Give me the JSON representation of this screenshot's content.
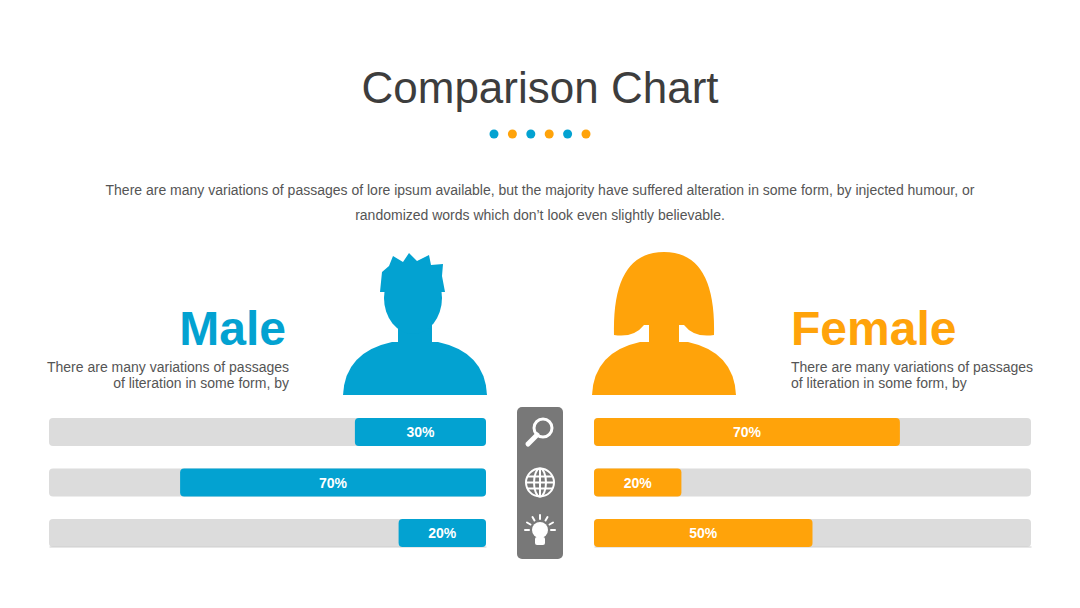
{
  "chart_data": {
    "type": "bar",
    "orientation": "horizontal",
    "title": "Comparison Chart",
    "subtitle": "There are many variations of passages of lore ipsum available, but the majority have suffered alteration in some form, by injected humour, or randomized words which don’t look even slightly believable.",
    "categories": [
      null,
      null,
      null
    ],
    "xlim": [
      0,
      100
    ],
    "tick_labels": false,
    "data_labels": true,
    "series": [
      {
        "name": "Male",
        "color": "#03a2d1",
        "description": "There are many variations of passages of literation in some form, by",
        "values": [
          30,
          70,
          20
        ],
        "value_labels": [
          "30%",
          "70%",
          "20%"
        ]
      },
      {
        "name": "Female",
        "color": "#ffa30a",
        "description": "There are many variations of passages of literation in some form, by",
        "values": [
          70,
          20,
          50
        ],
        "value_labels": [
          "70%",
          "20%",
          "50%"
        ]
      }
    ]
  }
}
